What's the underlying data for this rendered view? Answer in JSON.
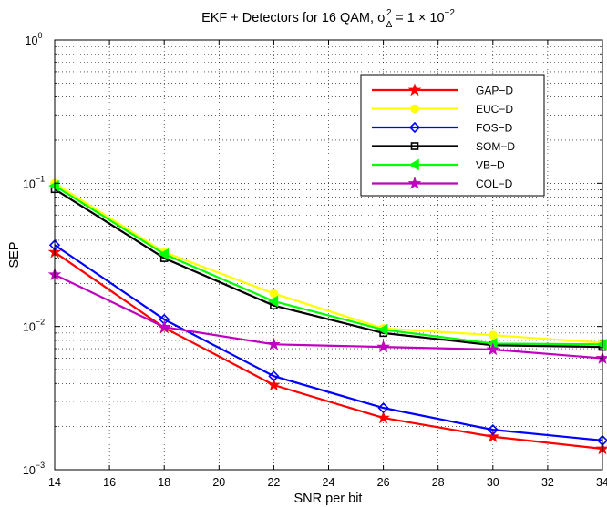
{
  "chart_data": {
    "type": "line",
    "title": {
      "prefix": "EKF + Detectors for 16 QAM, ",
      "sigma": "σ",
      "sigma_sup": "2",
      "sigma_sub": "Δ",
      "equals": " = 1 × 10",
      "exp": "−2"
    },
    "xlabel": "SNR per bit",
    "ylabel": "SEP",
    "x": [
      14,
      18,
      22,
      26,
      30,
      34
    ],
    "xlim": [
      14,
      34
    ],
    "ylim": [
      0.001,
      1
    ],
    "yscale": "log",
    "grid": true,
    "legend_position": "upper-right",
    "x_ticks": [
      "14",
      "16",
      "18",
      "20",
      "22",
      "24",
      "26",
      "28",
      "30",
      "32",
      "34"
    ],
    "y_ticks": [
      {
        "base": "10",
        "exp": "0",
        "value": 1
      },
      {
        "base": "10",
        "exp": "−1",
        "value": 0.1
      },
      {
        "base": "10",
        "exp": "−2",
        "value": 0.01
      },
      {
        "base": "10",
        "exp": "−3",
        "value": 0.001
      }
    ],
    "series": [
      {
        "name": "GAP−D",
        "color": "#ff0000",
        "marker": "star",
        "values": [
          0.033,
          0.0098,
          0.0039,
          0.0023,
          0.0017,
          0.0014
        ]
      },
      {
        "name": "EUC−D",
        "color": "#ffff00",
        "marker": "circle",
        "values": [
          0.1,
          0.033,
          0.017,
          0.0097,
          0.0087,
          0.0077
        ]
      },
      {
        "name": "FOS−D",
        "color": "#0000ff",
        "marker": "diamond",
        "values": [
          0.037,
          0.0112,
          0.0045,
          0.0027,
          0.0019,
          0.0016
        ]
      },
      {
        "name": "SOM−D",
        "color": "#000000",
        "marker": "square",
        "values": [
          0.091,
          0.03,
          0.014,
          0.009,
          0.0074,
          0.0072
        ]
      },
      {
        "name": "VB−D",
        "color": "#00ff00",
        "marker": "triangle-left",
        "values": [
          0.096,
          0.032,
          0.015,
          0.0095,
          0.0076,
          0.0075
        ]
      },
      {
        "name": "COL−D",
        "color": "#bf00bf",
        "marker": "star",
        "values": [
          0.023,
          0.0099,
          0.0075,
          0.0072,
          0.0069,
          0.006
        ]
      }
    ]
  }
}
